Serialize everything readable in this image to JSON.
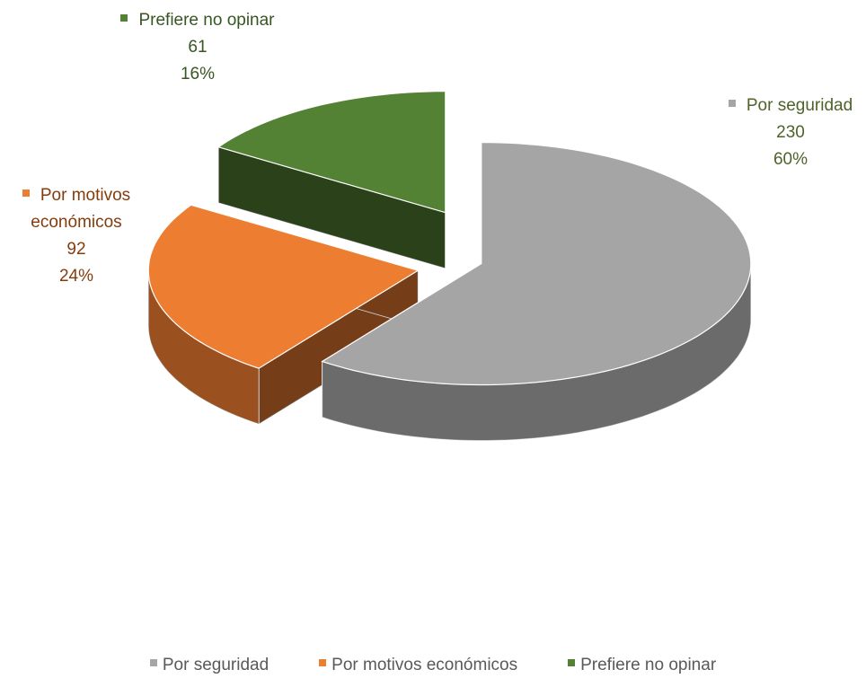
{
  "chart_data": {
    "type": "pie3d",
    "categories": [
      "Por seguridad",
      "Por motivos económicos",
      "Prefiere no opinar"
    ],
    "values": [
      230,
      92,
      61
    ],
    "percentages": [
      60,
      24,
      16
    ],
    "percentage_labels": [
      "60%",
      "24%",
      "16%"
    ],
    "colors": [
      "#a5a5a5",
      "#ed7d31",
      "#548235"
    ],
    "legend": "bottom"
  }
}
